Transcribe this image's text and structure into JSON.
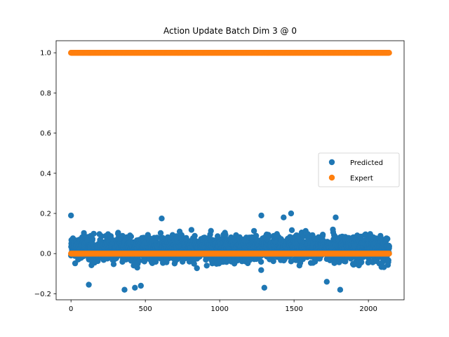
{
  "chart_data": {
    "type": "scatter",
    "title": "Action Update Batch Dim 3 @ 0",
    "xlabel": "",
    "ylabel": "",
    "xlim": [
      -100,
      2240
    ],
    "ylim": [
      -0.23,
      1.06
    ],
    "x_ticks": [
      0,
      500,
      1000,
      1500,
      2000
    ],
    "y_ticks": [
      -0.2,
      0.0,
      0.2,
      0.4,
      0.6,
      0.8,
      1.0
    ],
    "x_tick_labels": [
      "0",
      "500",
      "1000",
      "1500",
      "2000"
    ],
    "y_tick_labels": [
      "−0.2",
      "0.0",
      "0.2",
      "0.4",
      "0.6",
      "0.8",
      "1.0"
    ],
    "grid": false,
    "legend_position": "center-right",
    "series": [
      {
        "name": "Predicted",
        "color": "#1f77b4",
        "x_range": [
          0,
          2140
        ],
        "count": 2141,
        "y_typical_range": [
          -0.1,
          0.15
        ],
        "notable_points": [
          {
            "x": 0,
            "y": 0.19
          },
          {
            "x": 120,
            "y": -0.155
          },
          {
            "x": 360,
            "y": -0.18
          },
          {
            "x": 430,
            "y": -0.17
          },
          {
            "x": 470,
            "y": -0.16
          },
          {
            "x": 610,
            "y": 0.175
          },
          {
            "x": 1280,
            "y": 0.19
          },
          {
            "x": 1300,
            "y": -0.17
          },
          {
            "x": 1480,
            "y": 0.2
          },
          {
            "x": 1430,
            "y": 0.18
          },
          {
            "x": 1720,
            "y": -0.14
          },
          {
            "x": 1780,
            "y": 0.18
          },
          {
            "x": 1810,
            "y": -0.18
          }
        ]
      },
      {
        "name": "Expert",
        "color": "#ff7f0e",
        "x_range": [
          0,
          2140
        ],
        "count": 2141,
        "levels": [
          0.0,
          1.0
        ]
      }
    ]
  }
}
